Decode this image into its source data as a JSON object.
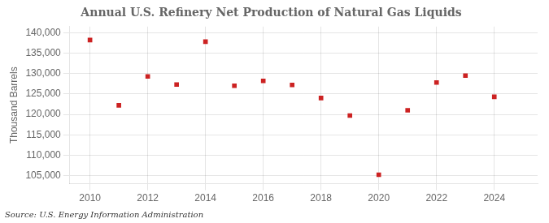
{
  "chart_data": {
    "type": "scatter",
    "title": "Annual U.S. Refinery Net Production of Natural Gas Liquids",
    "ylabel": "Thousand Barrels",
    "annotations": [
      "Source: U.S. Energy Information Administration"
    ],
    "x": [
      2010,
      2011,
      2012,
      2013,
      2014,
      2015,
      2016,
      2017,
      2018,
      2019,
      2020,
      2021,
      2022,
      2023,
      2024
    ],
    "values": [
      138200,
      122200,
      129300,
      127300,
      137800,
      127000,
      128200,
      127200,
      124000,
      119700,
      105200,
      121000,
      127800,
      129500,
      124300
    ],
    "color": "#cc2222",
    "marker": "square",
    "xlim": [
      2009.3,
      2025.5
    ],
    "xticks": [
      2010,
      2012,
      2014,
      2016,
      2018,
      2020,
      2022,
      2024
    ],
    "ylim": [
      103000,
      141500
    ],
    "yticks": [
      {
        "value": 105000,
        "label": "105,000"
      },
      {
        "value": 110000,
        "label": "110,000"
      },
      {
        "value": 115000,
        "label": "115,000"
      },
      {
        "value": 120000,
        "label": "120,000"
      },
      {
        "value": 125000,
        "label": "125,000"
      },
      {
        "value": 130000,
        "label": "130,000"
      },
      {
        "value": 135000,
        "label": "135,000"
      },
      {
        "value": 140000,
        "label": "140,000"
      }
    ],
    "grid": true
  }
}
